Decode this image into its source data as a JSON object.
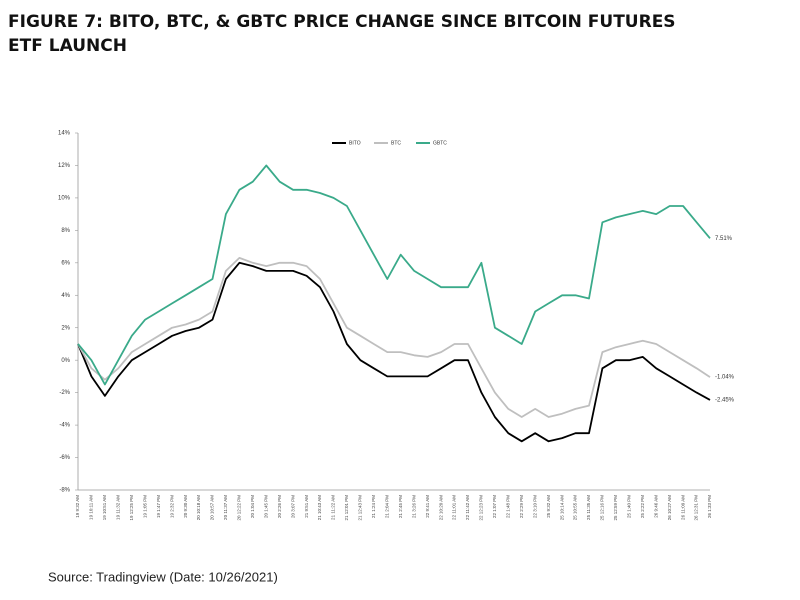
{
  "chart_data": {
    "type": "line",
    "title": "FIGURE 7: BITO, BTC, & GBTC PRICE CHANGE SINCE BITCOIN FUTURES",
    "title_line2": "ETF LAUNCH",
    "source": "Source: Tradingview (Date: 10/26/2021)",
    "categories": [
      "19 9:32 AM",
      "19 10:11 AM",
      "19 10:51 AM",
      "19 11:32 AM",
      "19 12:25 PM",
      "19 1:05 PM",
      "19 1:47 PM",
      "19 2:32 PM",
      "20 9:30 AM",
      "20 10:18 AM",
      "20 10:57 AM",
      "20 11:37 AM",
      "20 12:22 PM",
      "20 1:04 PM",
      "20 1:45 PM",
      "20 2:26 PM",
      "20 3:07 PM",
      "21 9:51 AM",
      "21 10:43 AM",
      "21 11:22 AM",
      "21 12:01 PM",
      "21 12:43 PM",
      "21 1:24 PM",
      "21 2:04 PM",
      "21 2:45 PM",
      "21 3:26 PM",
      "22 9:41 AM",
      "22 10:20 AM",
      "22 11:01 AM",
      "22 11:42 AM",
      "22 12:23 PM",
      "22 1:07 PM",
      "22 1:48 PM",
      "22 2:29 PM",
      "22 3:10 PM",
      "25 9:32 AM",
      "25 10:14 AM",
      "25 10:55 AM",
      "25 11:35 AM",
      "25 12:16 PM",
      "25 12:59 PM",
      "25 1:40 PM",
      "25 2:22 PM",
      "26 9:46 AM",
      "26 10:27 AM",
      "26 11:09 AM",
      "26 12:31 PM",
      "26 1:33 PM"
    ],
    "series": [
      {
        "name": "BITO",
        "color": "#000000",
        "values": [
          1,
          -1,
          -2.2,
          -1,
          0,
          0.5,
          1,
          1.5,
          1.8,
          2,
          2.5,
          5,
          6,
          5.8,
          5.5,
          5.5,
          5.5,
          5.2,
          4.5,
          3,
          1,
          0,
          -0.5,
          -1,
          -1,
          -1,
          -1,
          -0.5,
          0,
          0,
          -2,
          -3.5,
          -4.5,
          -5,
          -4.5,
          -5,
          -4.8,
          -4.5,
          -4.5,
          -0.5,
          0,
          0,
          0.2,
          -0.5,
          -1,
          -1.5,
          -2,
          -2.45
        ]
      },
      {
        "name": "BTC",
        "color": "#bfbfbf",
        "values": [
          1,
          -0.5,
          -1.2,
          -0.5,
          0.5,
          1,
          1.5,
          2,
          2.2,
          2.5,
          3,
          5.5,
          6.3,
          6,
          5.8,
          6,
          6,
          5.8,
          5,
          3.5,
          2,
          1.5,
          1,
          0.5,
          0.5,
          0.3,
          0.2,
          0.5,
          1,
          1,
          -0.5,
          -2,
          -3,
          -3.5,
          -3,
          -3.5,
          -3.3,
          -3,
          -2.8,
          0.5,
          0.8,
          1,
          1.2,
          1,
          0.5,
          0,
          -0.5,
          -1.04
        ]
      },
      {
        "name": "GBTC",
        "color": "#3aaa8a",
        "values": [
          1,
          0,
          -1.5,
          0,
          1.5,
          2.5,
          3,
          3.5,
          4,
          4.5,
          5,
          9,
          10.5,
          11,
          12,
          11,
          10.5,
          10.5,
          10.3,
          10,
          9.5,
          8,
          6.5,
          5,
          6.5,
          5.5,
          5,
          4.5,
          4.5,
          4.5,
          6,
          2,
          1.5,
          1,
          3,
          3.5,
          4,
          4,
          3.8,
          8.5,
          8.8,
          9,
          9.2,
          9,
          9.5,
          9.5,
          8.5,
          7.51
        ]
      }
    ],
    "annotations": [
      {
        "label": "7.51%",
        "value": 7.51
      },
      {
        "label": "-1.04%",
        "value": -1.04
      },
      {
        "label": "-2.45%",
        "value": -2.45
      }
    ],
    "ylim": [
      -8,
      14
    ],
    "yticks": [
      {
        "value": -8,
        "label": "-8%"
      },
      {
        "value": -6,
        "label": "-6%"
      },
      {
        "value": -4,
        "label": "-4%"
      },
      {
        "value": -2,
        "label": "-2%"
      },
      {
        "value": 0,
        "label": "0%"
      },
      {
        "value": 2,
        "label": "2%"
      },
      {
        "value": 4,
        "label": "4%"
      },
      {
        "value": 6,
        "label": "6%"
      },
      {
        "value": 8,
        "label": "8%"
      },
      {
        "value": 10,
        "label": "10%"
      },
      {
        "value": 12,
        "label": "12%"
      },
      {
        "value": 14,
        "label": "14%"
      }
    ],
    "grid": false,
    "legend": "top"
  }
}
